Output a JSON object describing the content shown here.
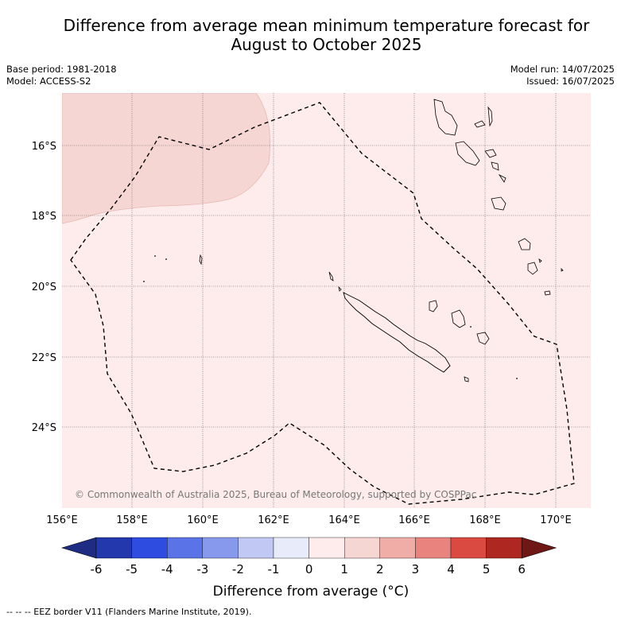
{
  "title_line1": "Difference from average mean minimum temperature forecast for",
  "title_line2": "August to October 2025",
  "base_period": "Base period: 1981-2018",
  "model": "Model: ACCESS-S2",
  "model_run": "Model run: 14/07/2025",
  "issued": "Issued: 16/07/2025",
  "lat_labels": [
    "16°S",
    "18°S",
    "20°S",
    "22°S",
    "24°S"
  ],
  "lon_labels": [
    "156°E",
    "158°E",
    "160°E",
    "162°E",
    "164°E",
    "166°E",
    "168°E",
    "170°E"
  ],
  "copyright": "© Commonwealth of Australia 2025, Bureau of Meteorology, supported by COSPPac",
  "colorbar": {
    "ticks": [
      "-6",
      "-5",
      "-4",
      "-3",
      "-2",
      "-1",
      "0",
      "1",
      "2",
      "3",
      "4",
      "5",
      "6"
    ],
    "colors": [
      "#1f2c83",
      "#2338ad",
      "#2e4ce0",
      "#5a73e6",
      "#8799ec",
      "#c1c8f4",
      "#e8ebfa",
      "#fdeceb",
      "#f6d6d3",
      "#f0aca7",
      "#e8847d",
      "#db4a40",
      "#ae2821",
      "#6e1714"
    ],
    "title": "Difference from average (°C)"
  },
  "map_colors": {
    "background_anomaly": "#fdeceb",
    "patch_anomaly": "#f6d6d3"
  },
  "footnote": "--  --  -- EEZ border V11 (Flanders Marine Institute, 2019)."
}
